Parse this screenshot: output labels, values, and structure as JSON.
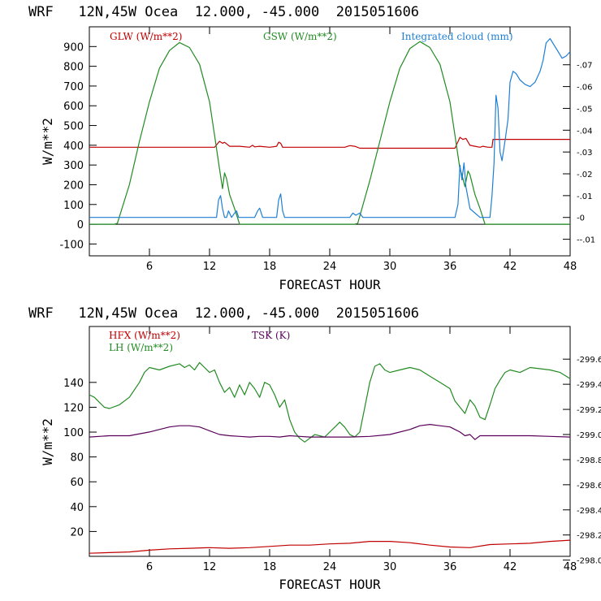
{
  "chart_data": [
    {
      "type": "line",
      "title": "WRF   12N,45W Ocea  12.000, -45.000  2015051606",
      "xlabel": "FORECAST HOUR",
      "ylabel": "W/m**2",
      "xlim": [
        0,
        48
      ],
      "ylim": [
        -160,
        1000
      ],
      "xticks": [
        "6",
        "12",
        "18",
        "24",
        "30",
        "36",
        "42",
        "48"
      ],
      "yticks": [
        "900",
        "800",
        "700",
        "600",
        "500",
        "400",
        "300",
        "200",
        "100",
        "0",
        "-100"
      ],
      "y2lim": [
        -0.0176,
        0.0874
      ],
      "y2ticks": [
        ".07",
        ".06",
        ".05",
        ".04",
        ".03",
        ".02",
        ".01",
        "0",
        "-.01"
      ],
      "zero_line": true,
      "series": [
        {
          "name": "GLW (W/m**2)",
          "color": "#c00000",
          "axis": "left",
          "x": [
            0,
            12.5,
            13,
            13.3,
            13.5,
            14,
            15,
            16,
            16.3,
            16.5,
            17,
            18,
            18.7,
            18.9,
            19.1,
            19.3,
            20,
            22,
            24,
            25.5,
            26,
            26.5,
            27,
            30,
            34,
            36.5,
            37,
            37.3,
            37.6,
            38,
            38.5,
            39,
            39.3,
            39.8,
            40.2,
            40.3,
            48
          ],
          "y": [
            390,
            390,
            420,
            410,
            415,
            395,
            395,
            390,
            400,
            392,
            395,
            390,
            395,
            415,
            410,
            390,
            390,
            390,
            390,
            390,
            398,
            395,
            385,
            385,
            385,
            385,
            440,
            430,
            435,
            400,
            395,
            390,
            395,
            390,
            390,
            430,
            430
          ]
        },
        {
          "name": "GSW (W/m**2)",
          "color": "#228b22",
          "axis": "left",
          "x": [
            0,
            2.5,
            2.8,
            4,
            5,
            6,
            7,
            8,
            9,
            10,
            11,
            12,
            12.5,
            13,
            13.3,
            13.5,
            13.7,
            14,
            14.5,
            15,
            26.5,
            26.8,
            28,
            29,
            30,
            31,
            32,
            33,
            34,
            35,
            36,
            36.5,
            37,
            37.2,
            37.5,
            37.8,
            38,
            38.5,
            39,
            39.5,
            48
          ],
          "y": [
            0,
            0,
            5,
            200,
            420,
            620,
            790,
            880,
            920,
            895,
            810,
            620,
            450,
            280,
            180,
            260,
            230,
            150,
            80,
            0,
            0,
            5,
            220,
            420,
            620,
            790,
            890,
            925,
            895,
            810,
            620,
            450,
            280,
            250,
            190,
            270,
            250,
            150,
            80,
            0,
            0
          ]
        },
        {
          "name": "Integrated cloud (mm)",
          "color": "#1e7fd4",
          "axis": "right",
          "x": [
            0,
            12.7,
            12.9,
            13.1,
            13.3,
            13.5,
            13.7,
            13.9,
            14.2,
            14.5,
            14.7,
            14.9,
            15.1,
            15.5,
            16.5,
            16.8,
            17,
            17.3,
            18,
            18.7,
            18.9,
            19.1,
            19.3,
            19.5,
            26,
            26.3,
            26.6,
            27,
            27.3,
            36.5,
            36.8,
            37,
            37.2,
            37.4,
            37.6,
            38,
            39,
            39.5,
            40,
            40.2,
            40.4,
            40.6,
            40.8,
            41,
            41.2,
            41.5,
            41.8,
            42,
            42.3,
            42.6,
            43,
            43.5,
            44,
            44.5,
            45,
            45.3,
            45.6,
            46,
            46.4,
            46.8,
            47.2,
            47.6,
            48
          ],
          "y": [
            0,
            0,
            0.008,
            0.01,
            0.004,
            0.0,
            0.0,
            0.003,
            0.0,
            0.002,
            0.003,
            0.0,
            0.0,
            0.0,
            0.0,
            0.003,
            0.0043,
            0.0,
            0.0,
            0.0,
            0.008,
            0.0108,
            0.003,
            0.0,
            0.0,
            0.002,
            0.001,
            0.002,
            0.0,
            0.0,
            0.006,
            0.024,
            0.0172,
            0.025,
            0.014,
            0.004,
            0.0,
            0.0,
            0.0,
            0.01,
            0.025,
            0.056,
            0.05,
            0.03,
            0.026,
            0.035,
            0.045,
            0.062,
            0.067,
            0.066,
            0.063,
            0.061,
            0.06,
            0.062,
            0.067,
            0.072,
            0.08,
            0.082,
            0.079,
            0.076,
            0.073,
            0.074,
            0.076
          ]
        }
      ]
    },
    {
      "type": "line",
      "title": "WRF   12N,45W Ocea  12.000, -45.000  2015051606",
      "xlabel": "FORECAST HOUR",
      "ylabel": "W/m**2",
      "xlim": [
        0,
        48
      ],
      "ylim": [
        0,
        185
      ],
      "xticks": [
        "6",
        "12",
        "18",
        "24",
        "30",
        "36",
        "42",
        "48"
      ],
      "yticks": [
        "140",
        "120",
        "100",
        "80",
        "60",
        "40",
        "20"
      ],
      "y2lim": [
        298.03,
        299.86
      ],
      "y2ticks": [
        "299.6",
        "299.4",
        "299.2",
        "299.0",
        "298.8",
        "298.6",
        "298.4",
        "298.2",
        "298.0"
      ],
      "series": [
        {
          "name": "HFX (W/m**2)",
          "color": "#c00000",
          "axis": "left",
          "x": [
            0,
            2,
            4,
            6,
            8,
            10,
            12,
            14,
            16,
            18,
            20,
            22,
            24,
            26,
            28,
            30,
            32,
            34,
            36,
            38,
            40,
            42,
            44,
            46,
            48
          ],
          "y": [
            2.5,
            3,
            3.5,
            5,
            6,
            6.5,
            7,
            6.5,
            7,
            8,
            9,
            9,
            10,
            10.5,
            12,
            12,
            11,
            9,
            7.5,
            7,
            9.5,
            10,
            10.5,
            12,
            13
          ]
        },
        {
          "name": "LH (W/m**2)",
          "color": "#228b22",
          "axis": "left",
          "x": [
            0,
            0.5,
            1,
            1.5,
            2,
            3,
            4,
            5,
            5.5,
            6,
            7,
            8,
            9,
            9.5,
            10,
            10.5,
            11,
            11.5,
            12,
            12.5,
            13,
            13.5,
            14,
            14.5,
            15,
            15.5,
            16,
            16.5,
            17,
            17.5,
            18,
            18.5,
            19,
            19.5,
            20,
            20.5,
            21,
            21.5,
            22,
            22.5,
            23,
            23.5,
            24,
            24.5,
            25,
            25.5,
            26,
            26.5,
            27,
            27.5,
            28,
            28.5,
            29,
            29.5,
            30,
            31,
            32,
            33,
            34,
            35,
            36,
            36.5,
            37,
            37.5,
            38,
            38.5,
            39,
            39.5,
            40,
            40.5,
            41,
            41.5,
            42,
            43,
            44,
            45,
            46,
            47,
            48
          ],
          "y": [
            130,
            128,
            124,
            120,
            119,
            122,
            128,
            140,
            148,
            152,
            150,
            153,
            155,
            152,
            154,
            150,
            156,
            152,
            148,
            150,
            140,
            132,
            136,
            128,
            138,
            130,
            140,
            135,
            128,
            140,
            138,
            130,
            120,
            126,
            110,
            100,
            95,
            92,
            95,
            98,
            97,
            96,
            100,
            104,
            108,
            104,
            98,
            96,
            100,
            120,
            140,
            153,
            155,
            150,
            148,
            150,
            152,
            150,
            145,
            140,
            135,
            125,
            120,
            115,
            126,
            121,
            112,
            110,
            122,
            135,
            142,
            148,
            150,
            148,
            152,
            151,
            150,
            148,
            143
          ]
        },
        {
          "name": "TSK (K)",
          "color": "#5a005a",
          "axis": "right",
          "x": [
            0,
            2,
            4,
            6,
            7,
            8,
            9,
            10,
            11,
            12,
            13,
            14,
            15,
            16,
            17,
            18,
            19,
            20,
            21,
            22,
            24,
            26,
            28,
            30,
            32,
            33,
            34,
            35,
            36,
            36.5,
            37,
            37.5,
            38,
            38.5,
            39,
            40,
            42,
            44,
            46,
            48
          ],
          "y": [
            298.98,
            298.99,
            298.99,
            299.02,
            299.04,
            299.06,
            299.07,
            299.07,
            299.06,
            299.03,
            299.0,
            298.99,
            298.985,
            298.98,
            298.985,
            298.985,
            298.98,
            298.99,
            298.985,
            298.98,
            298.98,
            298.98,
            298.985,
            299.0,
            299.04,
            299.07,
            299.08,
            299.07,
            299.06,
            299.04,
            299.02,
            298.99,
            299.0,
            298.96,
            298.99,
            298.99,
            298.99,
            298.99,
            298.985,
            298.98
          ]
        }
      ]
    }
  ]
}
